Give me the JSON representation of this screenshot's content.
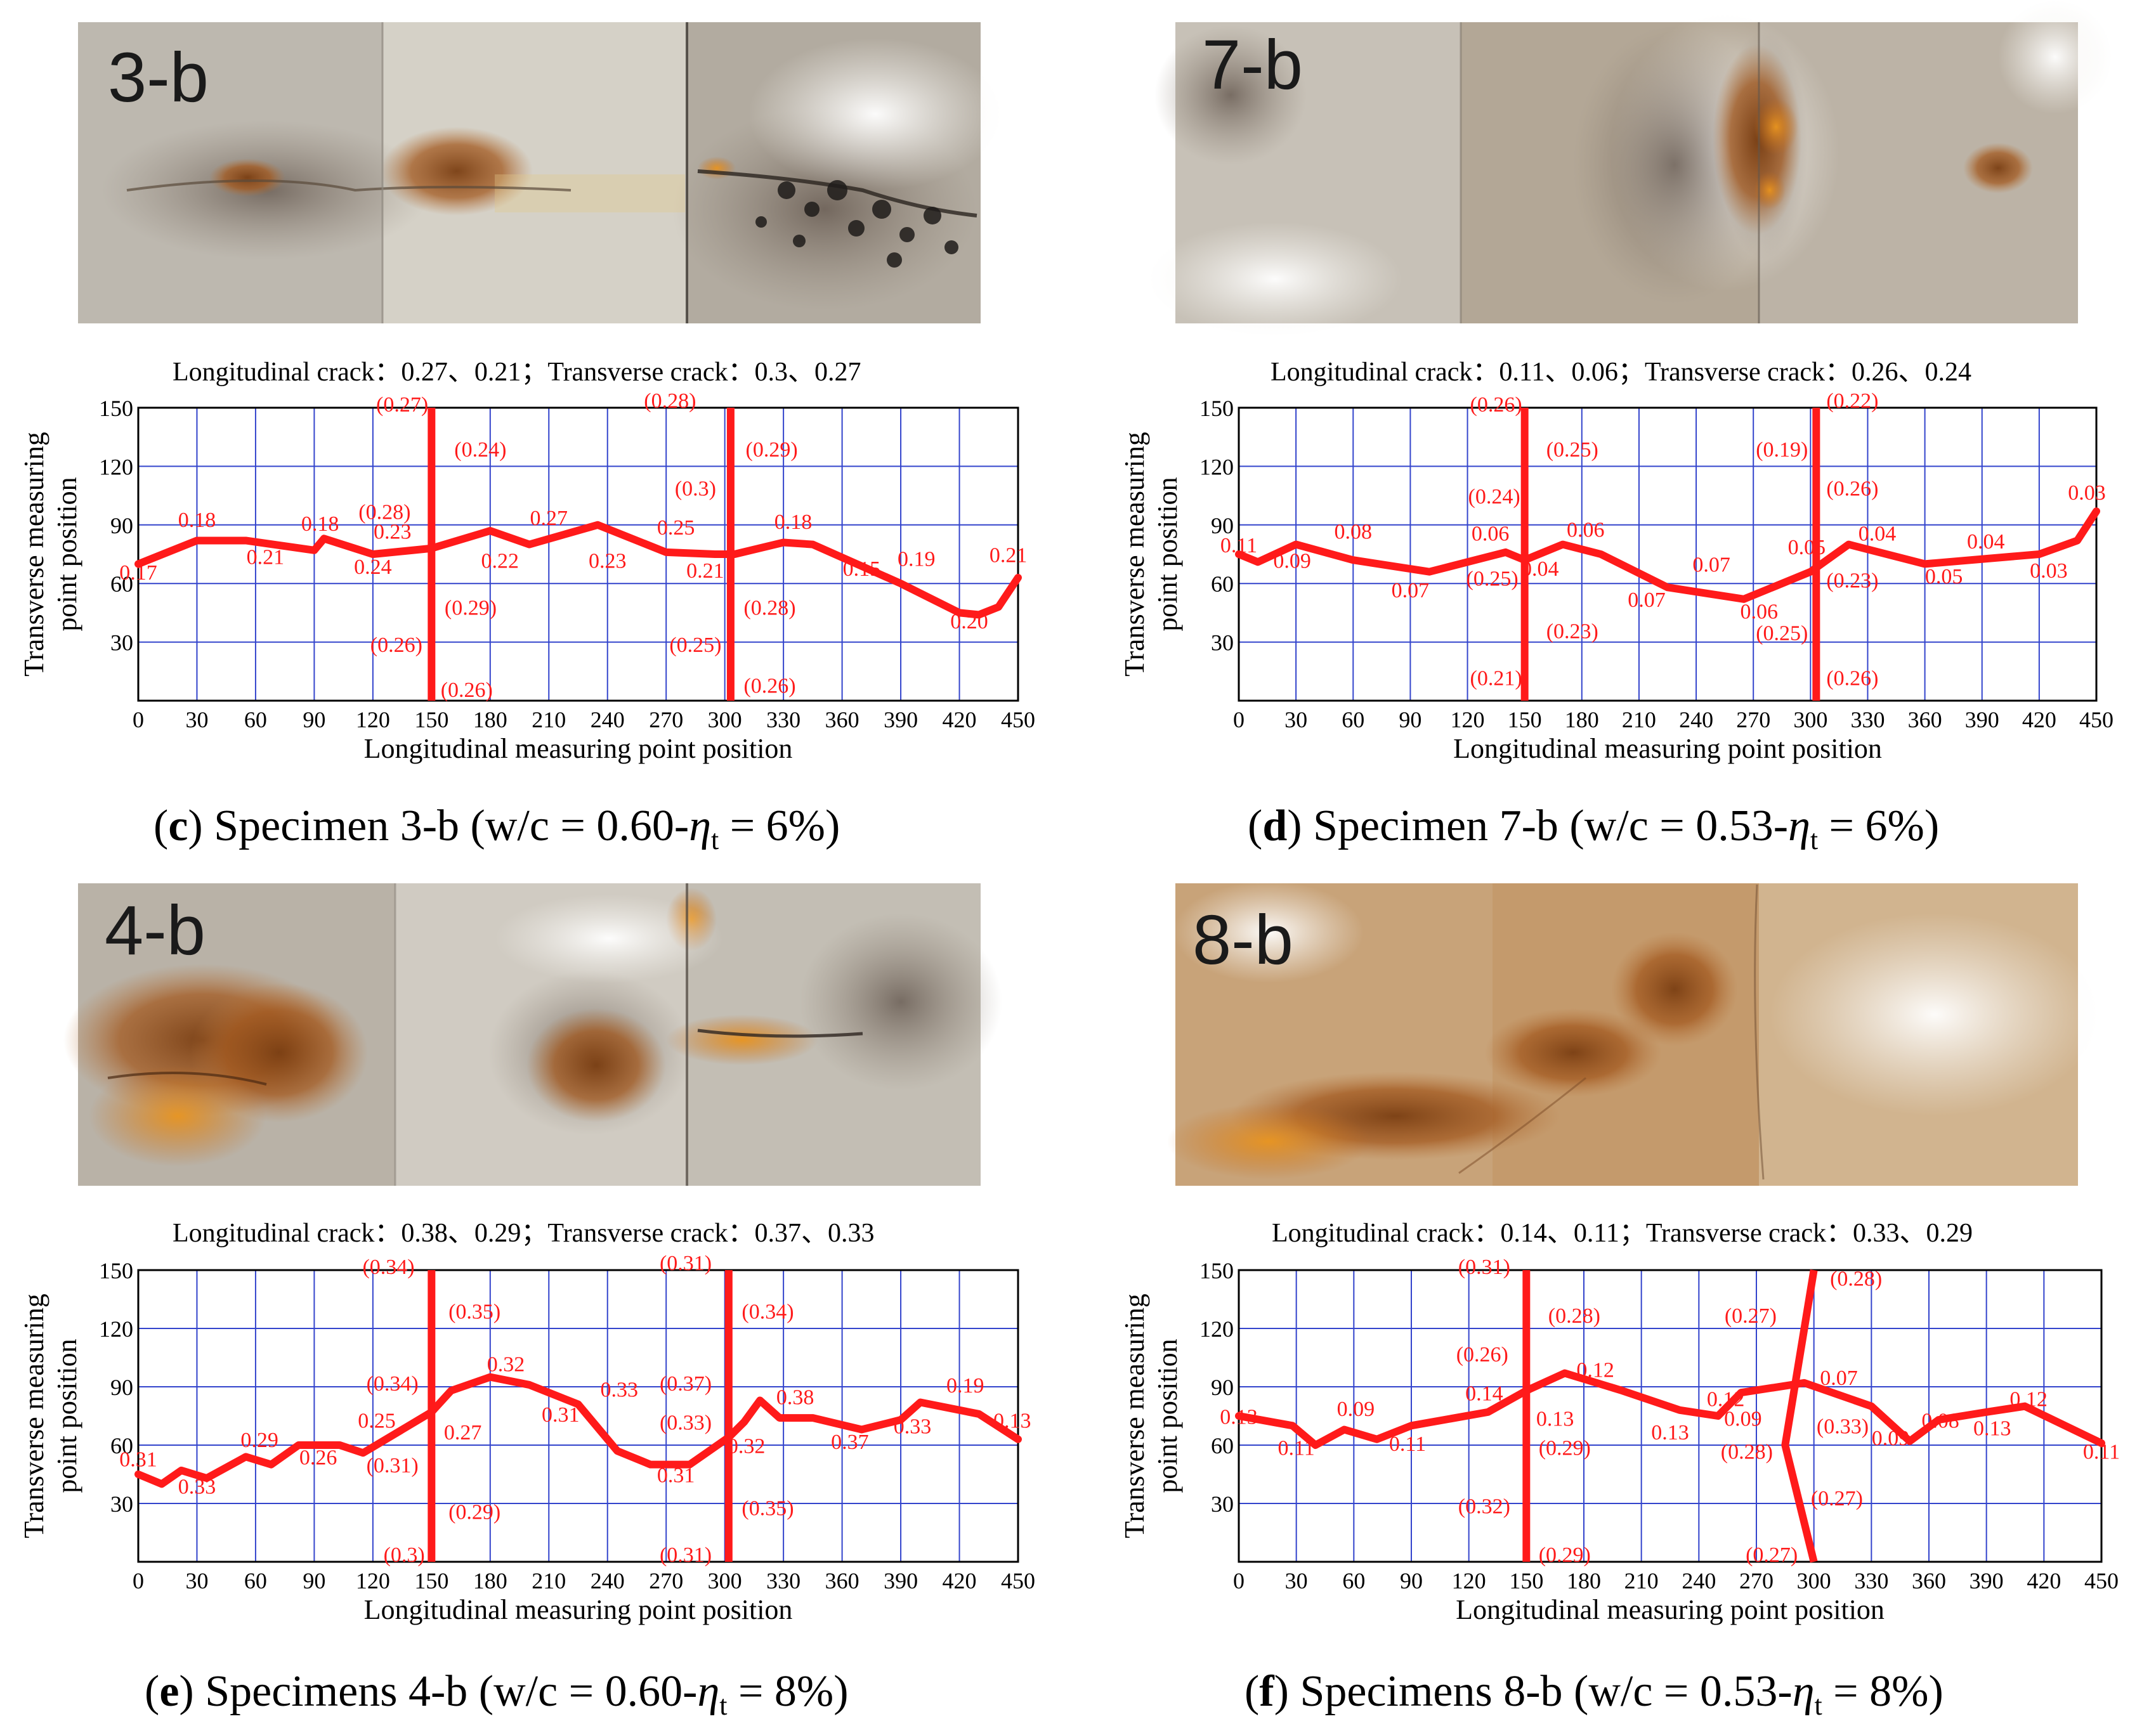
{
  "figure": {
    "x_axis_label": "Longitudinal measuring point position",
    "y_axis_label_line1": "Transverse measuring",
    "y_axis_label_line2": "point position"
  },
  "chart_data": [
    {
      "type": "line",
      "panel_letter": "c",
      "caption_text": " Specimen 3-b (w/c = 0.60-",
      "caption_eta": "η",
      "caption_sub": "t",
      "caption_end": " = 6%)",
      "photo_label": "3-b",
      "crack_note": "Longitudinal crack：0.27、0.21；Transverse crack：0.3、0.27",
      "x_ticks": [
        0,
        30,
        60,
        90,
        120,
        150,
        180,
        210,
        240,
        270,
        300,
        330,
        360,
        390,
        420,
        450
      ],
      "y_ticks": [
        30,
        60,
        90,
        120,
        150
      ],
      "xlim": [
        0,
        450
      ],
      "ylim": [
        0,
        150
      ],
      "xlabel": "Longitudinal measuring point position",
      "ylabel": "Transverse measuring point position",
      "longitudinal_crack": {
        "x": [
          0,
          30,
          55,
          90,
          95,
          120,
          150,
          180,
          200,
          235,
          270,
          295,
          305,
          330,
          345,
          390,
          420,
          430,
          440,
          450
        ],
        "y": [
          70,
          82,
          82,
          77,
          83,
          75,
          78,
          87,
          80,
          90,
          76,
          75,
          75,
          81,
          80,
          60,
          45,
          44,
          48,
          63
        ]
      },
      "transverse_cracks": [
        {
          "x": [
            150,
            150
          ],
          "y": [
            150,
            0
          ]
        },
        {
          "x": [
            303,
            303
          ],
          "y": [
            150,
            0
          ]
        }
      ],
      "data_labels": [
        {
          "text": "0.17",
          "x": 0,
          "y": 62
        },
        {
          "text": "0.18",
          "x": 30,
          "y": 89
        },
        {
          "text": "0.21",
          "x": 65,
          "y": 70
        },
        {
          "text": "0.18",
          "x": 93,
          "y": 87
        },
        {
          "text": "(0.28)",
          "x": 126,
          "y": 93
        },
        {
          "text": "0.23",
          "x": 130,
          "y": 83
        },
        {
          "text": "0.24",
          "x": 120,
          "y": 65
        },
        {
          "text": "0.22",
          "x": 185,
          "y": 68
        },
        {
          "text": "0.27",
          "x": 210,
          "y": 90
        },
        {
          "text": "0.23",
          "x": 240,
          "y": 68
        },
        {
          "text": "0.25",
          "x": 275,
          "y": 85
        },
        {
          "text": "(0.3)",
          "x": 285,
          "y": 105
        },
        {
          "text": "0.21",
          "x": 290,
          "y": 63
        },
        {
          "text": "0.18",
          "x": 335,
          "y": 88
        },
        {
          "text": "0.15",
          "x": 370,
          "y": 64
        },
        {
          "text": "0.19",
          "x": 398,
          "y": 69
        },
        {
          "text": "0.20",
          "x": 425,
          "y": 37
        },
        {
          "text": "0.21",
          "x": 445,
          "y": 71
        },
        {
          "text": "(0.27)",
          "x": 135,
          "y": 148
        },
        {
          "text": "(0.24)",
          "x": 175,
          "y": 125
        },
        {
          "text": "(0.29)",
          "x": 170,
          "y": 44
        },
        {
          "text": "(0.26)",
          "x": 132,
          "y": 25
        },
        {
          "text": "(0.26)",
          "x": 168,
          "y": 2
        },
        {
          "text": "(0.28)",
          "x": 272,
          "y": 150
        },
        {
          "text": "(0.29)",
          "x": 324,
          "y": 125
        },
        {
          "text": "(0.28)",
          "x": 323,
          "y": 44
        },
        {
          "text": "(0.25)",
          "x": 285,
          "y": 25
        },
        {
          "text": "(0.26)",
          "x": 323,
          "y": 4
        }
      ]
    },
    {
      "type": "line",
      "panel_letter": "d",
      "caption_text": " Specimen 7-b (w/c = 0.53-",
      "caption_eta": "η",
      "caption_sub": "t",
      "caption_end": " = 6%)",
      "photo_label": "7-b",
      "crack_note": "Longitudinal crack：0.11、0.06；Transverse crack：0.26、0.24",
      "x_ticks": [
        0,
        30,
        60,
        90,
        120,
        150,
        180,
        210,
        240,
        270,
        300,
        330,
        360,
        390,
        420,
        450
      ],
      "y_ticks": [
        30,
        60,
        90,
        120,
        150
      ],
      "xlim": [
        0,
        450
      ],
      "ylim": [
        0,
        150
      ],
      "xlabel": "Longitudinal measuring point position",
      "ylabel": "Transverse measuring point position",
      "longitudinal_crack": {
        "x": [
          0,
          10,
          30,
          60,
          100,
          140,
          150,
          170,
          190,
          225,
          265,
          300,
          320,
          360,
          420,
          440,
          450
        ],
        "y": [
          75,
          71,
          80,
          72,
          66,
          76,
          72,
          80,
          75,
          58,
          52,
          66,
          80,
          70,
          75,
          82,
          97
        ]
      },
      "transverse_cracks": [
        {
          "x": [
            150,
            150
          ],
          "y": [
            150,
            0
          ]
        },
        {
          "x": [
            303,
            303
          ],
          "y": [
            150,
            0
          ]
        }
      ],
      "data_labels": [
        {
          "text": "0.11",
          "x": 0,
          "y": 76
        },
        {
          "text": "0.09",
          "x": 28,
          "y": 68
        },
        {
          "text": "0.08",
          "x": 60,
          "y": 83
        },
        {
          "text": "0.07",
          "x": 90,
          "y": 53
        },
        {
          "text": "0.06",
          "x": 132,
          "y": 82
        },
        {
          "text": "(0.24)",
          "x": 134,
          "y": 101
        },
        {
          "text": "0.04",
          "x": 158,
          "y": 64
        },
        {
          "text": "0.06",
          "x": 182,
          "y": 84
        },
        {
          "text": "(0.25)",
          "x": 133,
          "y": 59
        },
        {
          "text": "0.07",
          "x": 214,
          "y": 48
        },
        {
          "text": "0.07",
          "x": 248,
          "y": 66
        },
        {
          "text": "0.06",
          "x": 273,
          "y": 42
        },
        {
          "text": "0.05",
          "x": 298,
          "y": 75
        },
        {
          "text": "0.04",
          "x": 335,
          "y": 82
        },
        {
          "text": "0.05",
          "x": 370,
          "y": 60
        },
        {
          "text": "0.04",
          "x": 392,
          "y": 78
        },
        {
          "text": "0.03",
          "x": 425,
          "y": 63
        },
        {
          "text": "0.03",
          "x": 445,
          "y": 103
        },
        {
          "text": "(0.26)",
          "x": 135,
          "y": 148
        },
        {
          "text": "(0.25)",
          "x": 175,
          "y": 125
        },
        {
          "text": "(0.23)",
          "x": 175,
          "y": 32
        },
        {
          "text": "(0.21)",
          "x": 135,
          "y": 8
        },
        {
          "text": "(0.22)",
          "x": 322,
          "y": 150
        },
        {
          "text": "(0.19)",
          "x": 285,
          "y": 125
        },
        {
          "text": "(0.26)",
          "x": 322,
          "y": 105
        },
        {
          "text": "(0.23)",
          "x": 322,
          "y": 58
        },
        {
          "text": "(0.25)",
          "x": 285,
          "y": 31
        },
        {
          "text": "(0.26)",
          "x": 322,
          "y": 8
        }
      ]
    },
    {
      "type": "line",
      "panel_letter": "e",
      "caption_text": " Specimens 4-b (w/c = 0.60-",
      "caption_eta": "η",
      "caption_sub": "t",
      "caption_end": " = 8%)",
      "photo_label": "4-b",
      "crack_note": "Longitudinal crack：0.38、0.29；Transverse crack：0.37、0.33",
      "x_ticks": [
        0,
        30,
        60,
        90,
        120,
        150,
        180,
        210,
        240,
        270,
        300,
        330,
        360,
        390,
        420,
        450
      ],
      "y_ticks": [
        30,
        60,
        90,
        120,
        150
      ],
      "xlim": [
        0,
        450
      ],
      "ylim": [
        0,
        150
      ],
      "xlabel": "Longitudinal measuring point position",
      "ylabel": "Transverse measuring point position",
      "longitudinal_crack": {
        "x": [
          0,
          12,
          22,
          35,
          55,
          68,
          82,
          103,
          115,
          150,
          160,
          180,
          200,
          225,
          245,
          262,
          282,
          302,
          310,
          318,
          328,
          345,
          370,
          390,
          400,
          430,
          450
        ],
        "y": [
          45,
          40,
          47,
          43,
          54,
          50,
          60,
          60,
          56,
          77,
          88,
          95,
          91,
          81,
          57,
          50,
          50,
          64,
          72,
          83,
          74,
          74,
          68,
          73,
          82,
          76,
          63
        ]
      },
      "transverse_cracks": [
        {
          "x": [
            150,
            150
          ],
          "y": [
            150,
            0
          ]
        },
        {
          "x": [
            302,
            302
          ],
          "y": [
            150,
            0
          ]
        }
      ],
      "data_labels": [
        {
          "text": "0.31",
          "x": 0,
          "y": 49
        },
        {
          "text": "0.33",
          "x": 30,
          "y": 35
        },
        {
          "text": "0.29",
          "x": 62,
          "y": 59
        },
        {
          "text": "0.26",
          "x": 92,
          "y": 50
        },
        {
          "text": "0.25",
          "x": 122,
          "y": 69
        },
        {
          "text": "(0.34)",
          "x": 130,
          "y": 88
        },
        {
          "text": "(0.31)",
          "x": 130,
          "y": 46
        },
        {
          "text": "0.27",
          "x": 166,
          "y": 63
        },
        {
          "text": "0.32",
          "x": 188,
          "y": 98
        },
        {
          "text": "0.31",
          "x": 216,
          "y": 72
        },
        {
          "text": "0.33",
          "x": 246,
          "y": 85
        },
        {
          "text": "(0.37)",
          "x": 280,
          "y": 88
        },
        {
          "text": "(0.33)",
          "x": 280,
          "y": 68
        },
        {
          "text": "0.31",
          "x": 275,
          "y": 41
        },
        {
          "text": "0.32",
          "x": 311,
          "y": 56
        },
        {
          "text": "0.38",
          "x": 336,
          "y": 81
        },
        {
          "text": "0.37",
          "x": 364,
          "y": 58
        },
        {
          "text": "0.33",
          "x": 396,
          "y": 66
        },
        {
          "text": "0.19",
          "x": 423,
          "y": 87
        },
        {
          "text": "0.13",
          "x": 447,
          "y": 69
        },
        {
          "text": "(0.34)",
          "x": 128,
          "y": 148
        },
        {
          "text": "(0.35)",
          "x": 172,
          "y": 125
        },
        {
          "text": "(0.29)",
          "x": 172,
          "y": 22
        },
        {
          "text": "(0.3)",
          "x": 136,
          "y": 0
        },
        {
          "text": "(0.31)",
          "x": 280,
          "y": 150
        },
        {
          "text": "(0.34)",
          "x": 322,
          "y": 125
        },
        {
          "text": "(0.35)",
          "x": 322,
          "y": 24
        },
        {
          "text": "(0.31)",
          "x": 280,
          "y": 0
        }
      ]
    },
    {
      "type": "line",
      "panel_letter": "f",
      "caption_text": " Specimens 8-b (w/c = 0.53-",
      "caption_eta": "η",
      "caption_sub": "t",
      "caption_end": " = 8%)",
      "photo_label": "8-b",
      "crack_note": "Longitudinal crack：0.14、0.11；Transverse crack：0.33、0.29",
      "x_ticks": [
        0,
        30,
        60,
        90,
        120,
        150,
        180,
        210,
        240,
        270,
        300,
        330,
        360,
        390,
        420,
        450
      ],
      "y_ticks": [
        30,
        60,
        90,
        120,
        150
      ],
      "xlim": [
        0,
        450
      ],
      "ylim": [
        0,
        150
      ],
      "xlabel": "Longitudinal measuring point position",
      "ylabel": "Transverse measuring point position",
      "longitudinal_crack": {
        "x": [
          0,
          28,
          40,
          55,
          72,
          90,
          130,
          150,
          170,
          200,
          230,
          250,
          262,
          295,
          330,
          350,
          365,
          390,
          410,
          450
        ],
        "y": [
          75,
          70,
          60,
          68,
          63,
          70,
          77,
          88,
          97,
          88,
          78,
          75,
          87,
          92,
          80,
          62,
          73,
          77,
          80,
          61
        ]
      },
      "transverse_cracks": [
        {
          "x": [
            150,
            150
          ],
          "y": [
            150,
            0
          ]
        },
        {
          "x": [
            300,
            285,
            300
          ],
          "y": [
            150,
            60,
            0
          ]
        }
      ],
      "data_labels": [
        {
          "text": "0.13",
          "x": 0,
          "y": 71
        },
        {
          "text": "0.11",
          "x": 30,
          "y": 55
        },
        {
          "text": "0.09",
          "x": 61,
          "y": 75
        },
        {
          "text": "0.11",
          "x": 88,
          "y": 57
        },
        {
          "text": "0.14",
          "x": 128,
          "y": 83
        },
        {
          "text": "(0.26)",
          "x": 127,
          "y": 103
        },
        {
          "text": "0.13",
          "x": 165,
          "y": 70
        },
        {
          "text": "(0.28)",
          "x": 175,
          "y": 123
        },
        {
          "text": "0.12",
          "x": 186,
          "y": 95
        },
        {
          "text": "(0.29)",
          "x": 170,
          "y": 55
        },
        {
          "text": "0.13",
          "x": 225,
          "y": 63
        },
        {
          "text": "0.12",
          "x": 254,
          "y": 80
        },
        {
          "text": "0.09",
          "x": 263,
          "y": 70
        },
        {
          "text": "(0.28)",
          "x": 265,
          "y": 53
        },
        {
          "text": "0.07",
          "x": 313,
          "y": 91
        },
        {
          "text": "(0.33)",
          "x": 315,
          "y": 66
        },
        {
          "text": "0.09",
          "x": 340,
          "y": 60
        },
        {
          "text": "0.08",
          "x": 366,
          "y": 69
        },
        {
          "text": "0.13",
          "x": 393,
          "y": 65
        },
        {
          "text": "0.12",
          "x": 412,
          "y": 80
        },
        {
          "text": "0.11",
          "x": 450,
          "y": 53
        },
        {
          "text": "(0.31)",
          "x": 128,
          "y": 148
        },
        {
          "text": "(0.32)",
          "x": 128,
          "y": 25
        },
        {
          "text": "(0.29)",
          "x": 170,
          "y": 0
        },
        {
          "text": "(0.27)",
          "x": 267,
          "y": 123
        },
        {
          "text": "(0.28)",
          "x": 322,
          "y": 142
        },
        {
          "text": "(0.27)",
          "x": 312,
          "y": 29
        },
        {
          "text": "(0.27)",
          "x": 278,
          "y": 0
        }
      ]
    }
  ]
}
